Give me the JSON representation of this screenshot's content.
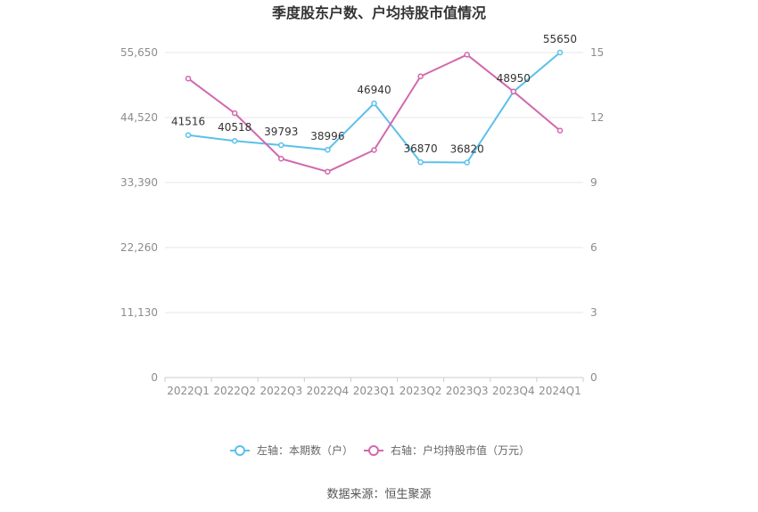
{
  "chart_data": {
    "type": "line",
    "title": "季度股东户数、户均持股市值情况",
    "categories": [
      "2022Q1",
      "2022Q2",
      "2022Q3",
      "2022Q4",
      "2023Q1",
      "2023Q2",
      "2023Q3",
      "2023Q4",
      "2024Q1"
    ],
    "series": [
      {
        "name": "左轴：本期数（户）",
        "axis": "left",
        "color": "#5bc0eb",
        "values": [
          41516,
          40518,
          39793,
          38996,
          46940,
          36870,
          36820,
          48950,
          55650
        ],
        "labels": [
          "41516",
          "40518",
          "39793",
          "38996",
          "46940",
          "36870",
          "36820",
          "48950",
          "55650"
        ]
      },
      {
        "name": "右轴：户均持股市值（万元）",
        "axis": "right",
        "color": "#d268ad",
        "values": [
          13.8,
          12.2,
          10.1,
          9.5,
          10.5,
          13.9,
          14.9,
          13.2,
          11.4
        ]
      }
    ],
    "y_left": {
      "ticks": [
        "0",
        "11,130",
        "22,260",
        "33,390",
        "44,520",
        "55,650"
      ],
      "tick_values": [
        0,
        11130,
        22260,
        33390,
        44520,
        55650
      ],
      "lim": [
        0,
        55650
      ]
    },
    "y_right": {
      "ticks": [
        "0",
        "3",
        "6",
        "9",
        "12",
        "15"
      ],
      "tick_values": [
        0,
        3,
        6,
        9,
        12,
        15
      ],
      "lim": [
        0,
        15
      ]
    },
    "grid": true,
    "legend_position": "bottom-center"
  },
  "footer": {
    "source": "数据来源：恒生聚源"
  }
}
